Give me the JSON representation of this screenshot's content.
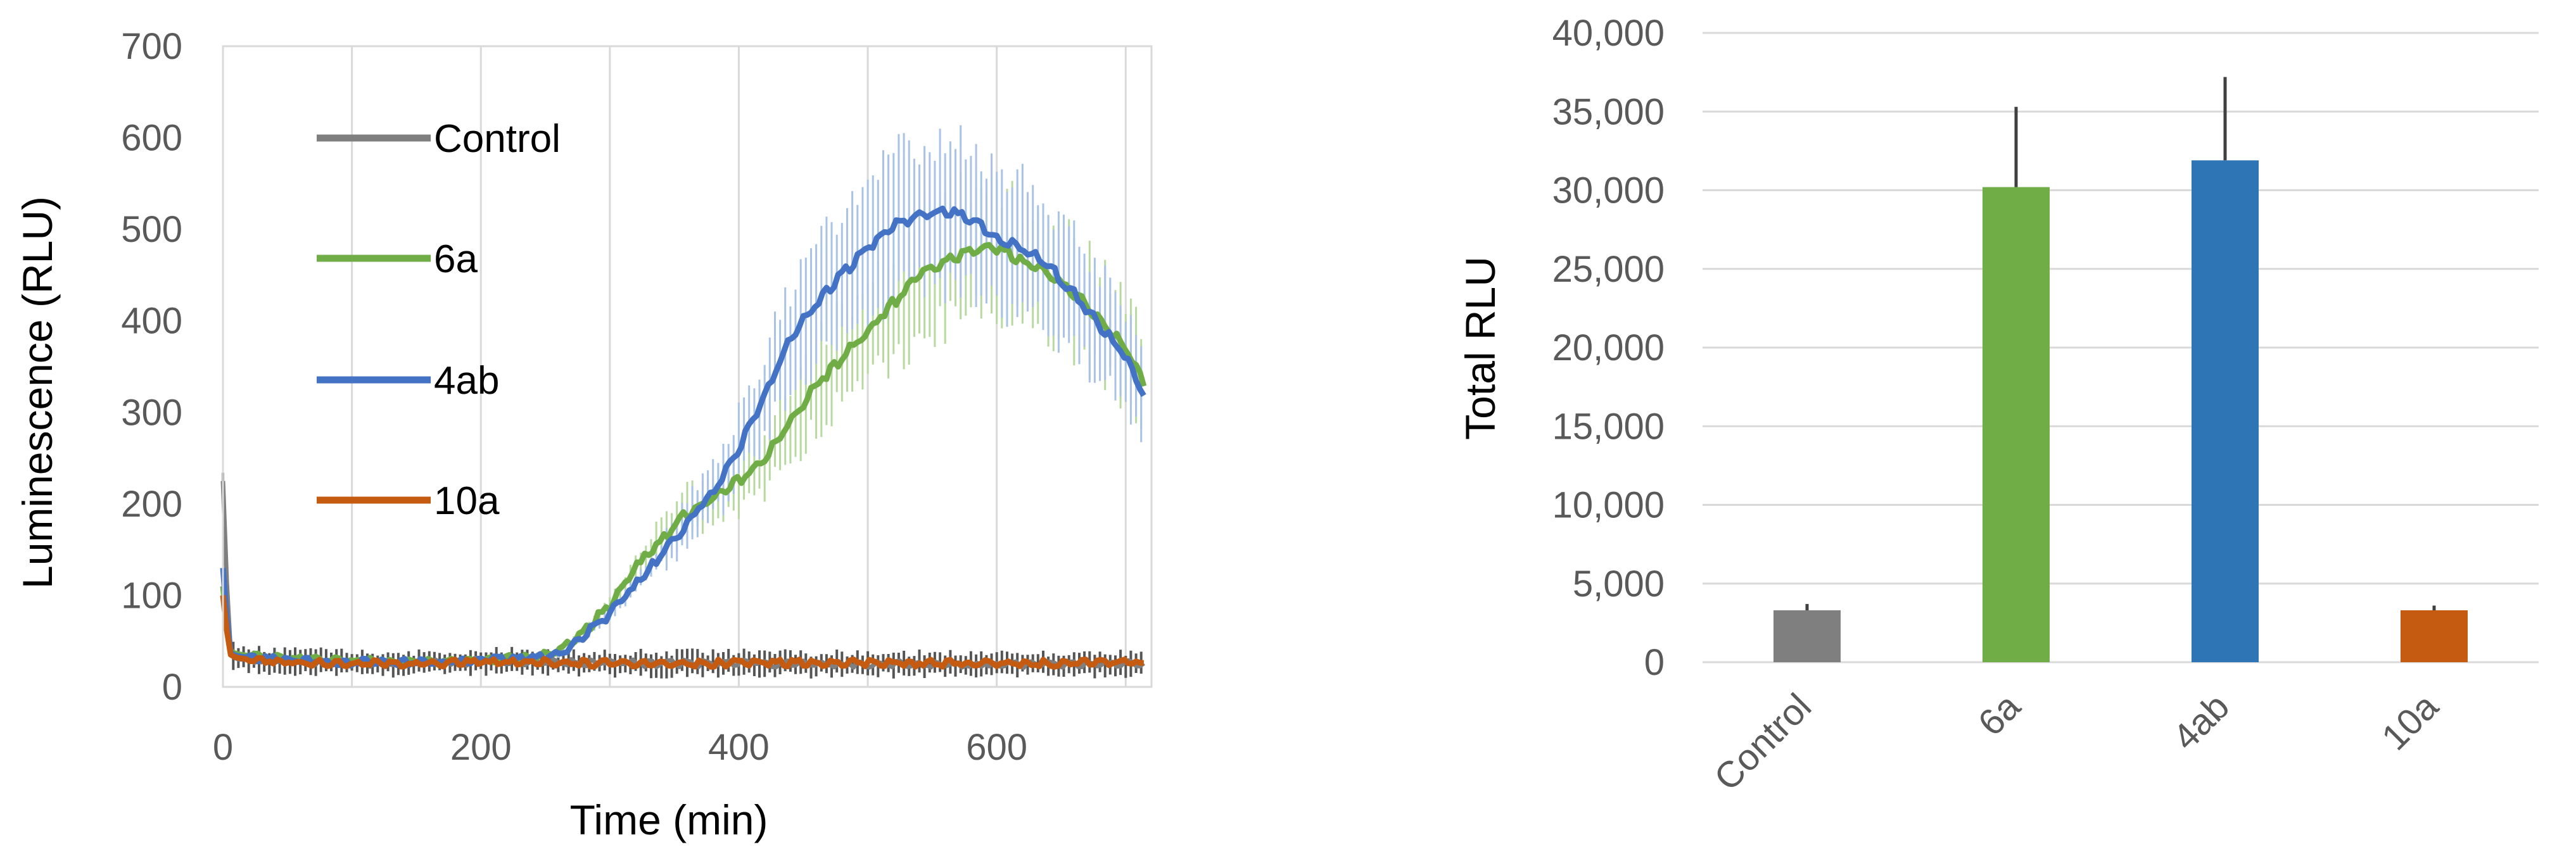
{
  "colors": {
    "control": "#7f7f7f",
    "a6": "#70ad47",
    "ab4": "#4472c4",
    "bar4ab": "#2e75b6",
    "a10": "#c55a11",
    "grid": "#d9d9d9",
    "axis_text": "#595959",
    "error_bar": "#404040"
  },
  "chart_data": [
    {
      "type": "line",
      "xlabel": "Time (min)",
      "ylabel": "Luminescence (RLU)",
      "xlim": [
        0,
        720
      ],
      "ylim": [
        0,
        700
      ],
      "x_ticks": [
        0,
        200,
        400,
        600
      ],
      "y_ticks": [
        0,
        100,
        200,
        300,
        400,
        500,
        600,
        700
      ],
      "x_tick_labels": [
        "0",
        "200",
        "400",
        "600"
      ],
      "y_tick_labels": [
        "0",
        "100",
        "200",
        "300",
        "400",
        "500",
        "600",
        "700"
      ],
      "grid": "vertical",
      "legend": "left, inside plot",
      "series": [
        {
          "name": "Control",
          "color": "#7f7f7f",
          "x": [
            0,
            5,
            10,
            20,
            40,
            60,
            80,
            100,
            120,
            140,
            160,
            180,
            200,
            220,
            240,
            260,
            280,
            300,
            320,
            340,
            360,
            380,
            400,
            420,
            440,
            460,
            480,
            500,
            520,
            540,
            560,
            580,
            600,
            620,
            640,
            660,
            680,
            700,
            715
          ],
          "y": [
            225,
            40,
            30,
            30,
            28,
            28,
            27,
            26,
            26,
            25,
            26,
            27,
            28,
            28,
            27,
            27,
            26,
            26,
            26,
            25,
            26,
            26,
            26,
            26,
            25,
            25,
            25,
            25,
            25,
            25,
            25,
            25,
            25,
            25,
            25,
            25,
            25,
            25,
            25
          ]
        },
        {
          "name": "6a",
          "color": "#70ad47",
          "x": [
            0,
            5,
            10,
            20,
            40,
            60,
            80,
            100,
            120,
            140,
            160,
            180,
            200,
            220,
            240,
            260,
            280,
            300,
            320,
            340,
            360,
            380,
            400,
            420,
            440,
            460,
            480,
            500,
            520,
            540,
            560,
            580,
            600,
            620,
            640,
            660,
            680,
            700,
            715
          ],
          "y": [
            110,
            40,
            36,
            34,
            32,
            30,
            29,
            28,
            28,
            28,
            28,
            29,
            30,
            31,
            32,
            38,
            60,
            90,
            130,
            160,
            190,
            205,
            225,
            250,
            290,
            330,
            360,
            390,
            420,
            450,
            465,
            475,
            480,
            465,
            450,
            430,
            400,
            370,
            330
          ]
        },
        {
          "name": "4ab",
          "color": "#4472c4",
          "x": [
            0,
            5,
            10,
            20,
            40,
            60,
            80,
            100,
            120,
            140,
            160,
            180,
            200,
            220,
            240,
            260,
            280,
            300,
            320,
            340,
            360,
            380,
            400,
            420,
            440,
            460,
            480,
            500,
            520,
            540,
            560,
            580,
            600,
            620,
            640,
            660,
            680,
            700,
            715
          ],
          "y": [
            130,
            38,
            34,
            32,
            30,
            29,
            28,
            27,
            27,
            27,
            27,
            28,
            29,
            30,
            31,
            35,
            55,
            80,
            110,
            145,
            180,
            215,
            260,
            320,
            380,
            420,
            450,
            480,
            505,
            515,
            520,
            510,
            490,
            480,
            460,
            430,
            395,
            360,
            320
          ]
        },
        {
          "name": "10a",
          "color": "#c55a11",
          "x": [
            0,
            5,
            10,
            20,
            40,
            60,
            80,
            100,
            120,
            140,
            160,
            180,
            200,
            220,
            240,
            260,
            280,
            300,
            320,
            340,
            360,
            380,
            400,
            420,
            440,
            460,
            480,
            500,
            520,
            540,
            560,
            580,
            600,
            620,
            640,
            660,
            680,
            700,
            715
          ],
          "y": [
            100,
            36,
            32,
            30,
            28,
            27,
            26,
            26,
            26,
            25,
            25,
            26,
            27,
            27,
            27,
            27,
            26,
            26,
            26,
            26,
            26,
            26,
            26,
            26,
            26,
            26,
            26,
            26,
            26,
            26,
            26,
            26,
            26,
            26,
            26,
            26,
            26,
            26,
            26
          ]
        }
      ]
    },
    {
      "type": "bar",
      "ylabel": "Total RLU",
      "categories": [
        "Control",
        "6a",
        "4ab",
        "10a"
      ],
      "values": [
        3300,
        30200,
        31900,
        3300
      ],
      "errors": [
        400,
        5100,
        5300,
        300
      ],
      "bar_colors": [
        "#7f7f7f",
        "#70ad47",
        "#2e75b6",
        "#c55a11"
      ],
      "ylim": [
        0,
        40000
      ],
      "y_ticks": [
        0,
        5000,
        10000,
        15000,
        20000,
        25000,
        30000,
        35000,
        40000
      ],
      "y_tick_labels": [
        "0",
        "5,000",
        "10,000",
        "15,000",
        "20,000",
        "25,000",
        "30,000",
        "35,000",
        "40,000"
      ],
      "grid": "horizontal"
    }
  ]
}
